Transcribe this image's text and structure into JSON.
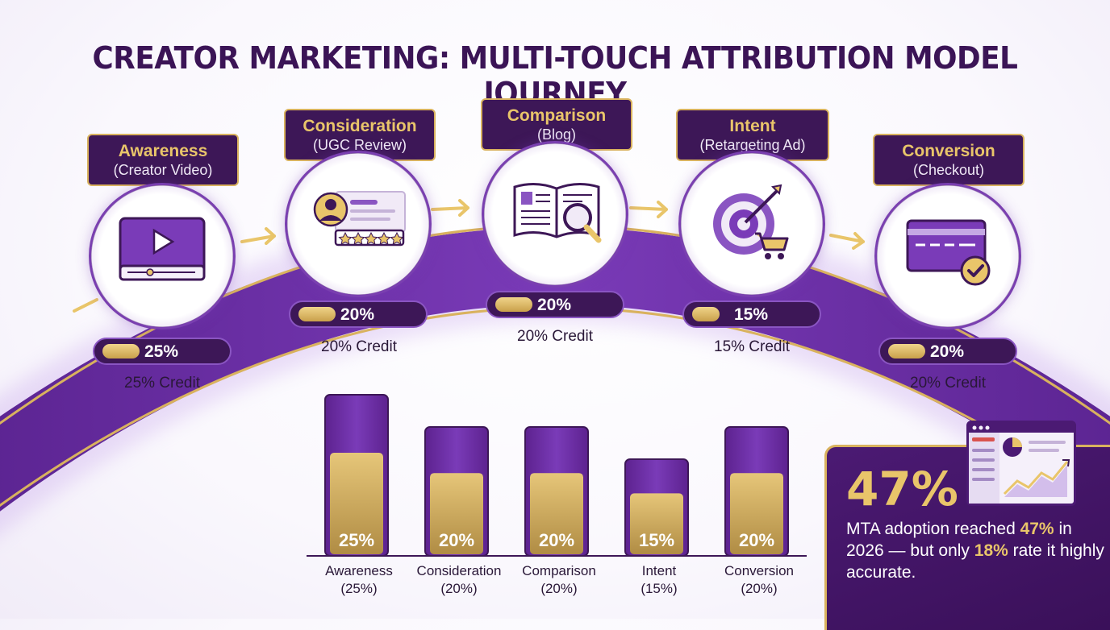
{
  "title": "CREATOR MARKETING: MULTI-TOUCH ATTRIBUTION MODEL JOURNEY",
  "colors": {
    "purple_dark": "#3d1757",
    "purple": "#6a2ea0",
    "gold": "#e9c56a",
    "gold_dark": "#c9a04a"
  },
  "stages": [
    {
      "name": "Awareness",
      "channel": "(Creator Video)",
      "credit_pct": "25%",
      "credit_text": "25% Credit",
      "icon": "video-player-icon"
    },
    {
      "name": "Consideration",
      "channel": "(UGC Review)",
      "credit_pct": "20%",
      "credit_text": "20% Credit",
      "icon": "user-review-icon"
    },
    {
      "name": "Comparison",
      "channel": "(Blog)",
      "credit_pct": "20%",
      "credit_text": "20% Credit",
      "icon": "open-book-magnifier-icon"
    },
    {
      "name": "Intent",
      "channel": "(Retargeting Ad)",
      "credit_pct": "15%",
      "credit_text": "15% Credit",
      "icon": "target-cart-icon"
    },
    {
      "name": "Conversion",
      "channel": "(Checkout)",
      "credit_pct": "20%",
      "credit_text": "20% Credit",
      "icon": "credit-card-check-icon"
    }
  ],
  "chart_data": {
    "type": "bar",
    "categories": [
      "Awareness",
      "Consideration",
      "Comparison",
      "Intent",
      "Conversion"
    ],
    "category_labels": [
      [
        "Awareness",
        "(25%)"
      ],
      [
        "Consideration",
        "(20%)"
      ],
      [
        "Comparison",
        "(20%)"
      ],
      [
        "Intent",
        "(15%)"
      ],
      [
        "Conversion",
        "(20%)"
      ]
    ],
    "values": [
      25,
      20,
      20,
      15,
      20
    ],
    "value_labels": [
      "25%",
      "20%",
      "20%",
      "15%",
      "20%"
    ],
    "title": "",
    "xlabel": "",
    "ylabel": "",
    "ylim": [
      0,
      25
    ],
    "grid": false
  },
  "stat": {
    "big": "47%",
    "line_parts": [
      "MTA adoption reached ",
      "47%",
      " in 2026 — but only ",
      "18%",
      " rate it highly accurate."
    ],
    "icon": "analytics-dashboard-icon"
  }
}
